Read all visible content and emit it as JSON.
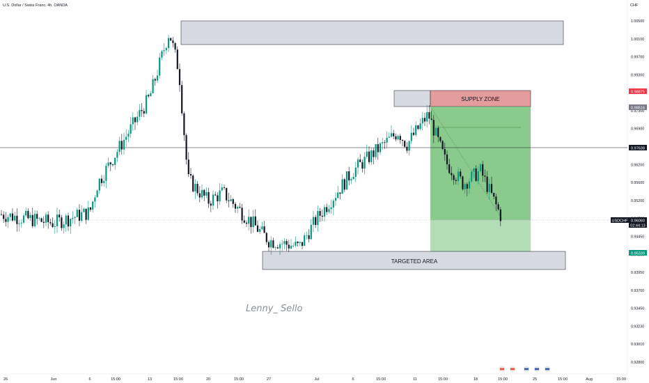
{
  "header": {
    "title": "U.S. Dollar / Swiss Franc, 4h, OANDA"
  },
  "axis": {
    "currency": "CHF",
    "ticks": [
      "1.00500",
      "1.00100",
      "0.99700",
      "0.99300",
      "0.98100",
      "0.97300",
      "0.96900",
      "0.96500",
      "0.96200",
      "0.95600",
      "0.95200",
      "0.94700",
      "0.94450",
      "0.94200",
      "0.93950",
      "0.93700",
      "0.93450",
      "0.93230",
      "0.93010",
      "0.92800"
    ],
    "badges": {
      "red": {
        "value": "0.98875",
        "color": "#f23645"
      },
      "gray": {
        "value": "0.98516",
        "color": "#787b86"
      },
      "hline": {
        "value": "0.97638",
        "color": "#131722"
      },
      "symbol": "USDCHF",
      "current": {
        "value": "0.96060",
        "color": "#131722"
      },
      "countdown": "02:44:13",
      "green": {
        "value": "0.95339",
        "color": "#089981"
      }
    }
  },
  "xaxis": {
    "ticks": [
      "26",
      "Jun",
      "6",
      "15:00",
      "13",
      "15:00",
      "20",
      "15:00",
      "27",
      "Jul",
      "6",
      "15:00",
      "11",
      "15:00",
      "18",
      "15:00",
      "25",
      "15:00",
      "Aug",
      "15:00",
      "8"
    ]
  },
  "zones": {
    "supply": "SUPPLY ZONE",
    "target": "TARGETED AREA"
  },
  "watermark": "Lenny_ Sello",
  "colors": {
    "up": "#089981",
    "down": "#131722",
    "profit": "#4caf50",
    "supply": "#e57373",
    "zone": "#d1d4dc"
  },
  "chart_data": {
    "type": "candlestick",
    "symbol": "USDCHF",
    "timeframe": "4h",
    "ylim": [
      0.928,
      1.0065
    ],
    "price_path": [
      {
        "t": "May 26",
        "y": 0.962
      },
      {
        "t": "Jun 1",
        "y": 0.96
      },
      {
        "t": "Jun 6",
        "y": 0.9625
      },
      {
        "t": "Jun 9",
        "y": 0.969
      },
      {
        "t": "Jun 13",
        "y": 0.989
      },
      {
        "t": "Jun 14",
        "y": 1.004
      },
      {
        "t": "Jun 16",
        "y": 0.995
      },
      {
        "t": "Jun 17",
        "y": 0.97
      },
      {
        "t": "Jun 20",
        "y": 0.965
      },
      {
        "t": "Jun 23",
        "y": 0.967
      },
      {
        "t": "Jun 28",
        "y": 0.956
      },
      {
        "t": "Jul 1",
        "y": 0.9545
      },
      {
        "t": "Jul 3",
        "y": 0.961
      },
      {
        "t": "Jul 6",
        "y": 0.972
      },
      {
        "t": "Jul 11",
        "y": 0.981
      },
      {
        "t": "Jul 13",
        "y": 0.978
      },
      {
        "t": "Jul 15",
        "y": 0.985
      },
      {
        "t": "Jul 18",
        "y": 0.974
      },
      {
        "t": "Jul 21",
        "y": 0.969
      },
      {
        "t": "Jul 22",
        "y": 0.972
      },
      {
        "t": "Jul 24",
        "y": 0.9606
      }
    ],
    "zones": [
      {
        "label": "",
        "from": "Jun 15",
        "to": "Aug 1",
        "low": 0.9995,
        "high": 1.0044
      },
      {
        "label": "SUPPLY ZONE",
        "from": "Jul 13",
        "to": "Jul 25",
        "low": 0.9852,
        "high": 0.9888
      },
      {
        "label": "TARGETED AREA",
        "from": "Jun 29",
        "to": "Aug 1",
        "low": 0.95,
        "high": 0.9535
      }
    ],
    "position": {
      "type": "short",
      "entry": 0.98516,
      "stop": 0.98875,
      "target": 0.95339
    },
    "horizontal_line": 0.97638,
    "current_price": 0.9606
  }
}
